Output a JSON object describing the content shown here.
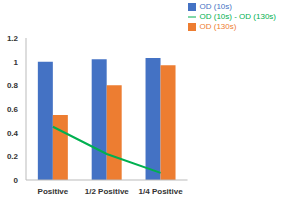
{
  "chart_data": {
    "type": "bar",
    "categories": [
      "Positive",
      "1/2 Positive",
      "1/4 Positive"
    ],
    "series": [
      {
        "name": "OD (10s)",
        "type": "bar",
        "color": "#4472c4",
        "values": [
          1.0,
          1.02,
          1.03
        ]
      },
      {
        "name": "OD (130s)",
        "type": "bar",
        "color": "#ed7d31",
        "values": [
          0.55,
          0.8,
          0.97
        ]
      },
      {
        "name": "OD (10s) - OD (130s)",
        "type": "line",
        "color": "#00b050",
        "marker": "none",
        "values": [
          0.45,
          0.22,
          0.06
        ]
      }
    ],
    "ylim": [
      0,
      1.2
    ],
    "yticks": [
      0,
      0.2,
      0.4,
      0.6,
      0.8,
      1,
      1.2
    ],
    "grid": false,
    "legend": "top-right"
  }
}
